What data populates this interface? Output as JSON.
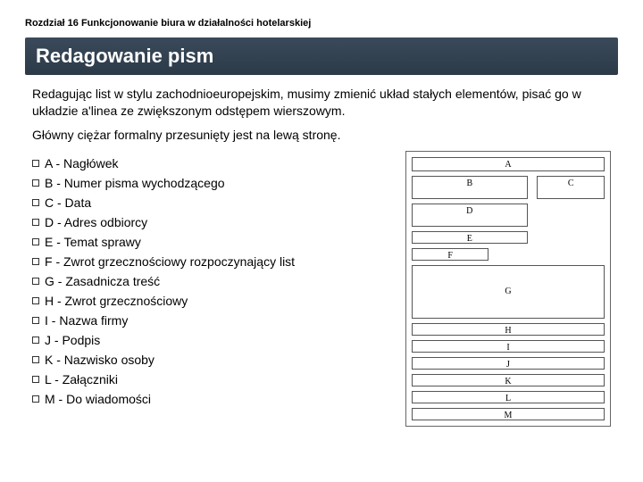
{
  "chapter": "Rozdział 16 Funkcjonowanie biura w działalności hotelarskiej",
  "title": "Redagowanie pism",
  "paragraph1": "Redagując list w stylu zachodnioeuropejskim, musimy zmienić układ stałych elementów, pisać go w układzie a'linea ze zwiększonym odstępem wierszowym.",
  "paragraph2": "Główny ciężar formalny przesunięty jest na lewą stronę.",
  "items": [
    {
      "text": "A - Nagłówek"
    },
    {
      "text": "B - Numer pisma wychodzącego"
    },
    {
      "text": "C - Data"
    },
    {
      "text": "D - Adres odbiorcy"
    },
    {
      "text": "E - Temat sprawy"
    },
    {
      "text": "F - Zwrot grzecznościowy rozpoczynający list"
    },
    {
      "text": "G - Zasadnicza treść"
    },
    {
      "text": "H - Zwrot grzecznościowy"
    },
    {
      "text": "I - Nazwa firmy"
    },
    {
      "text": "J - Podpis"
    },
    {
      "text": "K - Nazwisko osoby"
    },
    {
      "text": "L - Załączniki"
    },
    {
      "text": "M - Do wiadomości"
    }
  ],
  "diagram": {
    "A": "A",
    "B": "B",
    "C": "C",
    "D": "D",
    "E": "E",
    "F": "F",
    "G": "G",
    "H": "H",
    "I": "I",
    "J": "J",
    "K": "K",
    "L": "L",
    "M": "M"
  },
  "colors": {
    "title_bg_top": "#3a4a5a",
    "title_bg_bottom": "#2c3a48",
    "title_fg": "#ffffff",
    "text": "#000000",
    "box_border": "#555555",
    "page_bg": "#ffffff"
  }
}
